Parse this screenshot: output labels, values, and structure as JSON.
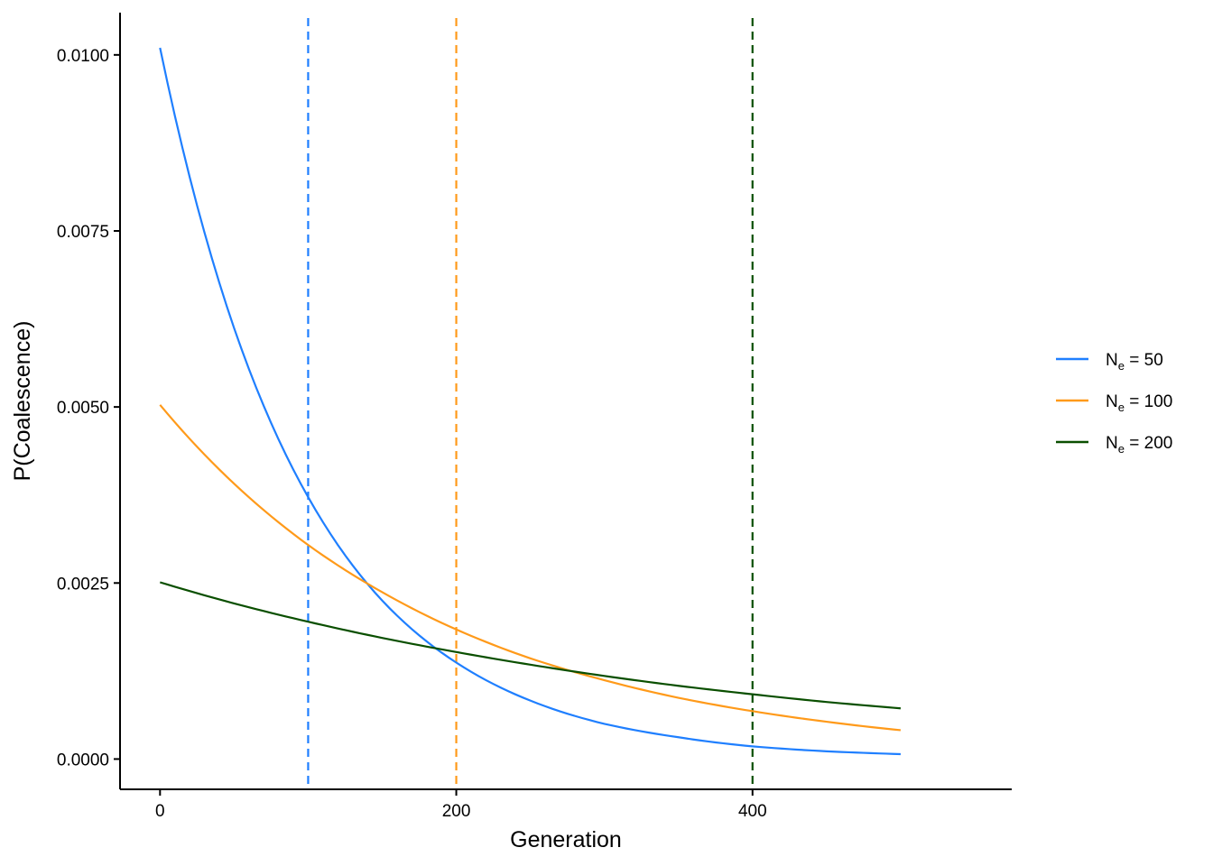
{
  "chart_data": {
    "type": "line",
    "xlabel": "Generation",
    "ylabel": "P(Coalescence)",
    "xlim": [
      -27,
      575
    ],
    "ylim": [
      -0.00043,
      0.0106
    ],
    "x_ticks": [
      0,
      200,
      400
    ],
    "x_tick_labels": [
      "0",
      "200",
      "400"
    ],
    "y_ticks": [
      0,
      0.0025,
      0.005,
      0.0075,
      0.01
    ],
    "y_tick_labels": [
      "0.0000",
      "0.0025",
      "0.0050",
      "0.0075",
      "0.0100"
    ],
    "grid": false,
    "legend_position": "right",
    "x_range": [
      0,
      500
    ],
    "series": [
      {
        "name_prefix": "N",
        "name_sub": "e",
        "name_suffix": " = 50",
        "Ne": 50,
        "color": "#1f7fff",
        "line_style": "solid",
        "points": [
          [
            0,
            0.0101
          ],
          [
            50,
            0.00612
          ],
          [
            100,
            0.00372
          ],
          [
            150,
            0.00225
          ],
          [
            200,
            0.00137
          ],
          [
            250,
            0.00083
          ],
          [
            300,
            0.0005
          ],
          [
            350,
            0.00031
          ],
          [
            400,
            0.00018
          ],
          [
            450,
            0.00011
          ],
          [
            500,
            7e-05
          ]
        ]
      },
      {
        "name_prefix": "N",
        "name_sub": "e",
        "name_suffix": " = 100",
        "Ne": 100,
        "color": "#ff9a1a",
        "line_style": "solid",
        "points": [
          [
            0,
            0.00503
          ],
          [
            50,
            0.00391
          ],
          [
            100,
            0.00304
          ],
          [
            150,
            0.00237
          ],
          [
            200,
            0.00184
          ],
          [
            250,
            0.00143
          ],
          [
            300,
            0.00112
          ],
          [
            350,
            0.00087
          ],
          [
            400,
            0.00068
          ],
          [
            450,
            0.00053
          ],
          [
            500,
            0.00041
          ]
        ]
      },
      {
        "name_prefix": "N",
        "name_sub": "e",
        "name_suffix": " = 200",
        "Ne": 200,
        "color": "#0a4f00",
        "line_style": "solid",
        "points": [
          [
            0,
            0.00251
          ],
          [
            50,
            0.00221
          ],
          [
            100,
            0.00195
          ],
          [
            150,
            0.00172
          ],
          [
            200,
            0.00152
          ],
          [
            250,
            0.00134
          ],
          [
            300,
            0.00118
          ],
          [
            350,
            0.00104
          ],
          [
            400,
            0.00092
          ],
          [
            450,
            0.00081
          ],
          [
            500,
            0.00072
          ]
        ]
      }
    ],
    "reference_lines": [
      {
        "x": 100,
        "color": "#1f7fff",
        "line_style": "dashed"
      },
      {
        "x": 200,
        "color": "#ff9a1a",
        "line_style": "dashed"
      },
      {
        "x": 400,
        "color": "#0a4f00",
        "line_style": "dashed"
      }
    ]
  }
}
